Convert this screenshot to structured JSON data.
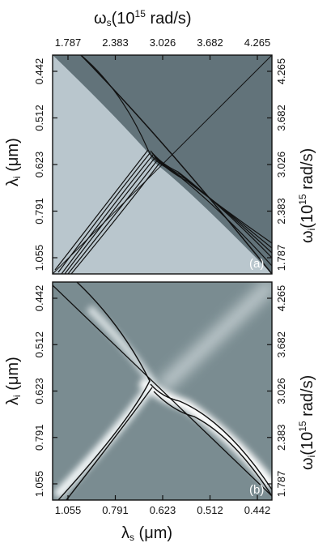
{
  "chart_data": {
    "type": "heatmap",
    "panels": [
      {
        "label": "(a)",
        "left_axis": {
          "label_main": "λ",
          "label_sub": "i",
          "label_unit": " (μm)",
          "ticks": [
            "0.442",
            "0.512",
            "0.623",
            "0.791",
            "1.055"
          ]
        },
        "right_axis": {
          "label_main": "ω",
          "label_sub": "i",
          "label_unit": "(10",
          "label_exp": "15",
          "label_tail": " rad/s)",
          "ticks": [
            "4.265",
            "3.682",
            "3.026",
            "2.383",
            "1.787"
          ]
        },
        "top_axis": {
          "label_main": "ω",
          "label_sub": "s",
          "label_unit": "(10",
          "label_exp": "15",
          "label_tail": " rad/s)",
          "ticks": [
            "1.787",
            "2.383",
            "3.026",
            "3.682",
            "4.265"
          ]
        },
        "background_colors": {
          "light": "#b9c6cd",
          "dark": "#62737a"
        }
      },
      {
        "label": "(b)",
        "left_axis": {
          "label_main": "λ",
          "label_sub": "i",
          "label_unit": " (μm)",
          "ticks": [
            "0.442",
            "0.512",
            "0.623",
            "0.791",
            "1.055"
          ]
        },
        "right_axis": {
          "label_main": "ω",
          "label_sub": "i",
          "label_unit": "(10",
          "label_exp": "15",
          "label_tail": " rad/s)",
          "ticks": [
            "4.265",
            "3.682",
            "3.026",
            "2.383",
            "1.787"
          ]
        },
        "bottom_axis": {
          "label_main": "λ",
          "label_sub": "s",
          "label_unit": " (μm)",
          "ticks": [
            "1.055",
            "0.791",
            "0.623",
            "0.512",
            "0.442"
          ]
        },
        "background_colors": {
          "base": "#7a8c91",
          "bright": "#ffffff"
        }
      }
    ]
  }
}
